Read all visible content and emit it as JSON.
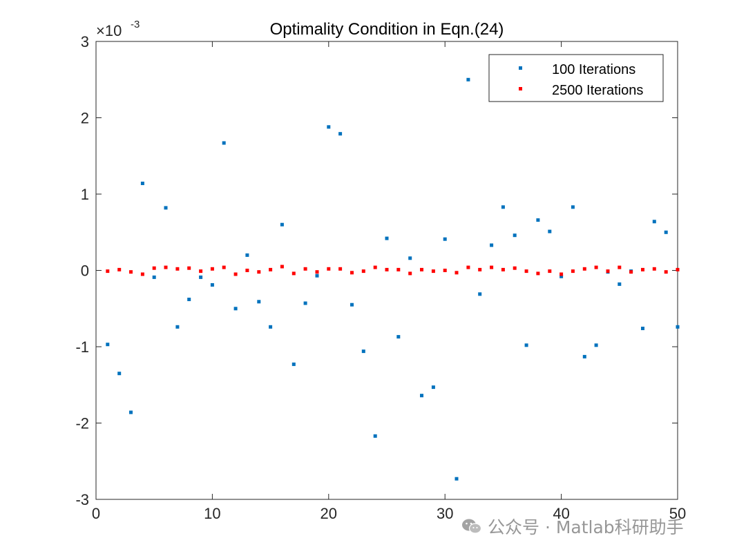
{
  "chart_data": {
    "type": "scatter",
    "title": "Optimality Condition in Eqn.(24)",
    "xlabel": "",
    "ylabel": "",
    "xlim": [
      0,
      50
    ],
    "ylim": [
      -3,
      3
    ],
    "y_scale_label": "×10",
    "y_scale_exponent": "-3",
    "x_ticks": [
      0,
      10,
      20,
      30,
      40,
      50
    ],
    "y_ticks": [
      -3,
      -2,
      -1,
      0,
      1,
      2,
      3
    ],
    "x_tick_labels": [
      "0",
      "10",
      "20",
      "30",
      "40",
      "50"
    ],
    "y_tick_labels": [
      "-3",
      "-2",
      "-1",
      "0",
      "1",
      "2",
      "3"
    ],
    "grid": false,
    "legend_position": "top-right",
    "series": [
      {
        "name": "100 Iterations",
        "color": "#0072BD",
        "x": [
          1,
          2,
          3,
          4,
          5,
          6,
          7,
          8,
          9,
          10,
          11,
          12,
          13,
          14,
          15,
          16,
          17,
          18,
          19,
          20,
          21,
          22,
          23,
          24,
          25,
          26,
          27,
          28,
          29,
          30,
          31,
          32,
          33,
          34,
          35,
          36,
          37,
          38,
          39,
          40,
          41,
          42,
          43,
          44,
          45,
          46,
          47,
          48,
          49,
          50
        ],
        "values": [
          -0.97,
          -1.35,
          -1.86,
          1.14,
          -0.09,
          0.82,
          -0.74,
          -0.38,
          -0.09,
          -0.19,
          1.67,
          -0.5,
          0.2,
          -0.41,
          -0.74,
          0.6,
          -1.23,
          -0.43,
          -0.07,
          1.88,
          1.79,
          -0.45,
          -1.06,
          -2.17,
          0.42,
          -0.87,
          0.16,
          -1.64,
          -1.53,
          0.41,
          -2.73,
          2.5,
          -0.31,
          0.33,
          0.83,
          0.46,
          -0.98,
          0.66,
          0.51,
          -0.08,
          0.83,
          -1.13,
          -0.98,
          -0.02,
          -0.18,
          -0.01,
          -0.76,
          0.64,
          0.5,
          -0.74
        ]
      },
      {
        "name": "2500 Iterations",
        "color": "#FF0000",
        "x": [
          1,
          2,
          3,
          4,
          5,
          6,
          7,
          8,
          9,
          10,
          11,
          12,
          13,
          14,
          15,
          16,
          17,
          18,
          19,
          20,
          21,
          22,
          23,
          24,
          25,
          26,
          27,
          28,
          29,
          30,
          31,
          32,
          33,
          34,
          35,
          36,
          37,
          38,
          39,
          40,
          41,
          42,
          43,
          44,
          45,
          46,
          47,
          48,
          49,
          50
        ],
        "values": [
          -0.01,
          0.01,
          -0.02,
          -0.05,
          0.03,
          0.04,
          0.02,
          0.03,
          -0.01,
          0.02,
          0.04,
          -0.05,
          0.0,
          -0.02,
          0.01,
          0.05,
          -0.04,
          0.02,
          -0.02,
          0.02,
          0.02,
          -0.03,
          -0.01,
          0.04,
          0.01,
          0.01,
          -0.04,
          0.01,
          -0.01,
          0.0,
          -0.03,
          0.04,
          0.01,
          0.04,
          0.01,
          0.03,
          -0.01,
          -0.04,
          -0.01,
          -0.05,
          -0.01,
          0.02,
          0.04,
          -0.01,
          0.04,
          -0.02,
          0.01,
          0.02,
          -0.02,
          0.01
        ]
      }
    ]
  },
  "watermark": {
    "icon": "wechat-icon",
    "text": "公众号 · Matlab科研助手"
  }
}
